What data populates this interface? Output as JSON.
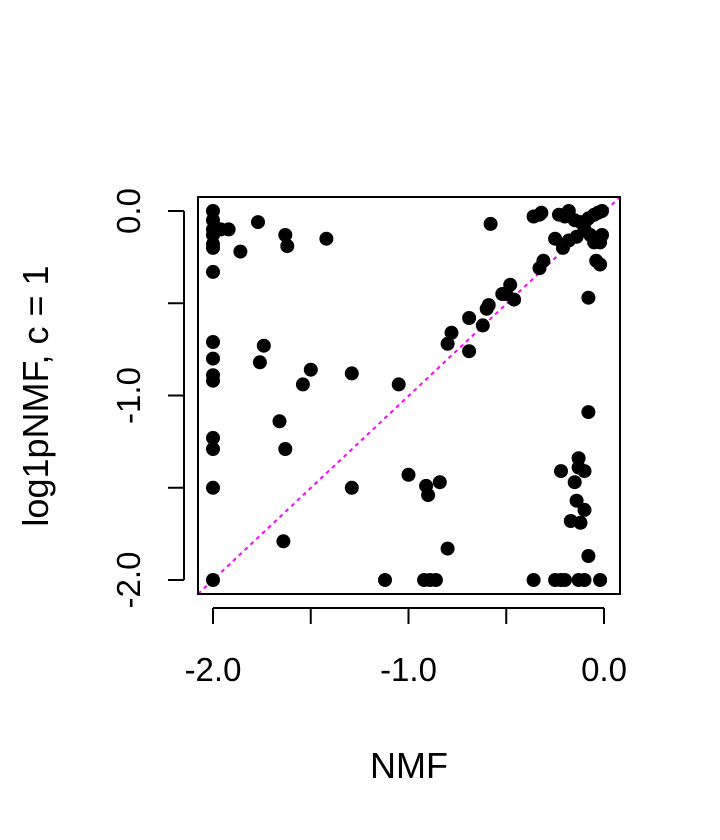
{
  "chart_data": {
    "type": "scatter",
    "xlabel": "NMF",
    "ylabel": "log1pNMF, c = 1",
    "xlim": [
      -2.0,
      0.0
    ],
    "ylim": [
      -2.0,
      0.0
    ],
    "x_ticks": [
      "-2.0",
      "-1.0",
      "0.0"
    ],
    "y_ticks": [
      "-2.0",
      "-1.0",
      "0.0"
    ],
    "reference_line": {
      "from": [
        -2.0,
        -2.0
      ],
      "to": [
        0.0,
        0.0
      ],
      "style": "dotted",
      "color": "#ff00ff"
    },
    "point_color": "#000000",
    "points": [
      [
        -2.0,
        0.0
      ],
      [
        -2.0,
        -0.05
      ],
      [
        -2.0,
        -0.1
      ],
      [
        -2.0,
        -0.13
      ],
      [
        -2.0,
        -0.18
      ],
      [
        -2.0,
        -0.2
      ],
      [
        -1.96,
        -0.1
      ],
      [
        -1.92,
        -0.1
      ],
      [
        -1.86,
        -0.22
      ],
      [
        -1.77,
        -0.06
      ],
      [
        -1.63,
        -0.13
      ],
      [
        -1.62,
        -0.19
      ],
      [
        -1.42,
        -0.15
      ],
      [
        -2.0,
        -0.33
      ],
      [
        -2.0,
        -0.71
      ],
      [
        -2.0,
        -0.8
      ],
      [
        -2.0,
        -0.89
      ],
      [
        -2.0,
        -0.92
      ],
      [
        -1.74,
        -0.73
      ],
      [
        -1.76,
        -0.82
      ],
      [
        -1.54,
        -0.94
      ],
      [
        -1.5,
        -0.86
      ],
      [
        -1.29,
        -0.88
      ],
      [
        -1.05,
        -0.94
      ],
      [
        -1.66,
        -1.14
      ],
      [
        -1.63,
        -1.29
      ],
      [
        -2.0,
        -1.23
      ],
      [
        -2.0,
        -1.29
      ],
      [
        -2.0,
        -1.5
      ],
      [
        -1.64,
        -1.79
      ],
      [
        -1.29,
        -1.5
      ],
      [
        -1.0,
        -1.43
      ],
      [
        -0.91,
        -1.49
      ],
      [
        -0.9,
        -1.54
      ],
      [
        -0.84,
        -1.47
      ],
      [
        -0.8,
        -1.83
      ],
      [
        -1.12,
        -2.0
      ],
      [
        -0.92,
        -2.0
      ],
      [
        -0.89,
        -2.0
      ],
      [
        -0.86,
        -2.0
      ],
      [
        -2.0,
        -2.0
      ],
      [
        -0.36,
        -2.0
      ],
      [
        -0.25,
        -2.0
      ],
      [
        -0.22,
        -2.0
      ],
      [
        -0.2,
        -2.0
      ],
      [
        -0.13,
        -2.0
      ],
      [
        -0.1,
        -2.0
      ],
      [
        -0.02,
        -2.0
      ],
      [
        -0.08,
        -1.87
      ],
      [
        -0.12,
        -1.69
      ],
      [
        -0.1,
        -1.62
      ],
      [
        -0.14,
        -1.57
      ],
      [
        -0.17,
        -1.68
      ],
      [
        -0.15,
        -1.47
      ],
      [
        -0.13,
        -1.39
      ],
      [
        -0.1,
        -1.41
      ],
      [
        -0.22,
        -1.41
      ],
      [
        -0.13,
        -1.34
      ],
      [
        -0.08,
        -1.09
      ],
      [
        -0.08,
        -0.47
      ],
      [
        -0.02,
        -0.29
      ],
      [
        -0.04,
        -0.27
      ],
      [
        -0.02,
        -0.17
      ],
      [
        -0.01,
        -0.13
      ],
      [
        -0.05,
        -0.17
      ],
      [
        -0.07,
        -0.13
      ],
      [
        -0.1,
        -0.1
      ],
      [
        -0.14,
        -0.14
      ],
      [
        -0.18,
        -0.16
      ],
      [
        -0.21,
        -0.2
      ],
      [
        -0.25,
        -0.15
      ],
      [
        -0.23,
        -0.02
      ],
      [
        -0.2,
        -0.03
      ],
      [
        -0.18,
        0.0
      ],
      [
        -0.15,
        -0.05
      ],
      [
        -0.12,
        -0.06
      ],
      [
        -0.08,
        -0.04
      ],
      [
        -0.05,
        -0.02
      ],
      [
        -0.03,
        -0.01
      ],
      [
        -0.01,
        0.0
      ],
      [
        -0.36,
        -0.03
      ],
      [
        -0.33,
        -0.02
      ],
      [
        -0.32,
        -0.01
      ],
      [
        -0.58,
        -0.07
      ],
      [
        -0.33,
        -0.31
      ],
      [
        -0.31,
        -0.27
      ],
      [
        -0.48,
        -0.4
      ],
      [
        -0.5,
        -0.45
      ],
      [
        -0.46,
        -0.48
      ],
      [
        -0.59,
        -0.51
      ],
      [
        -0.6,
        -0.53
      ],
      [
        -0.69,
        -0.58
      ],
      [
        -0.62,
        -0.62
      ],
      [
        -0.78,
        -0.66
      ],
      [
        -0.8,
        -0.72
      ],
      [
        -0.69,
        -0.76
      ],
      [
        -0.52,
        -0.45
      ]
    ]
  }
}
